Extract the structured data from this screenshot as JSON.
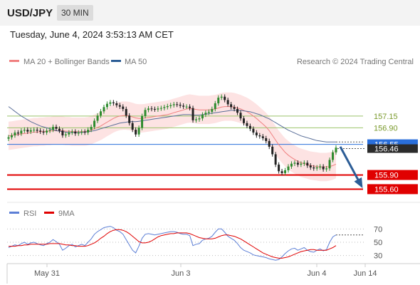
{
  "header": {
    "pair": "USD/JPY",
    "timeframe": "30 MIN",
    "datetime": "Tuesday, June 4, 2024 3:53:13 AM CET"
  },
  "legend": {
    "main": [
      {
        "label": "MA 20 + Bollinger Bands",
        "color": "#f08080"
      },
      {
        "label": "MA 50",
        "color": "#2c5d96"
      }
    ],
    "credit": "Research © 2024 Trading Central",
    "rsi": [
      {
        "label": "RSI",
        "color": "#5c7fd6"
      },
      {
        "label": "9MA",
        "color": "#e00000"
      }
    ]
  },
  "chart_data": {
    "type": "line",
    "price_axis": {
      "ylim": [
        155.35,
        158.1
      ],
      "levels": [
        {
          "label": "157.15",
          "value": 157.15,
          "kind": "resistance",
          "color": "#9bc46a"
        },
        {
          "label": "156.90",
          "value": 156.9,
          "kind": "resistance",
          "color": "#9bc46a"
        },
        {
          "label": "156.55",
          "value": 156.55,
          "kind": "pivot",
          "color": "#2a6fdb"
        },
        {
          "label": "155.90",
          "value": 155.9,
          "kind": "support",
          "color": "#e00000"
        },
        {
          "label": "155.60",
          "value": 155.6,
          "kind": "support",
          "color": "#e00000"
        }
      ],
      "current_price": {
        "label": "156.46",
        "value": 156.46
      }
    },
    "rsi_axis": {
      "ylim": [
        20,
        80
      ],
      "ticks": [
        {
          "label": "70",
          "value": 70
        },
        {
          "label": "50",
          "value": 50
        },
        {
          "label": "30",
          "value": 30
        }
      ]
    },
    "x_axis": {
      "ticks": [
        "May 31",
        "Jun 3",
        "Jun 4",
        "Jun 14"
      ]
    },
    "forecast": {
      "from": 156.5,
      "to": 155.6,
      "color": "#2c5d96"
    },
    "price": {
      "close": [
        156.7,
        156.74,
        156.8,
        156.78,
        156.84,
        156.86,
        156.82,
        156.85,
        156.86,
        156.84,
        156.82,
        156.8,
        156.84,
        156.86,
        156.92,
        156.88,
        156.84,
        156.74,
        156.76,
        156.8,
        156.82,
        156.78,
        156.8,
        156.82,
        156.8,
        156.86,
        156.92,
        157.05,
        157.16,
        157.25,
        157.34,
        157.41,
        157.44,
        157.42,
        157.38,
        157.35,
        157.3,
        157.16,
        157.0,
        156.86,
        156.76,
        156.9,
        157.15,
        157.28,
        157.31,
        157.3,
        157.29,
        157.31,
        157.32,
        157.34,
        157.36,
        157.38,
        157.4,
        157.39,
        157.37,
        157.35,
        157.35,
        157.32,
        157.06,
        157.08,
        157.1,
        157.18,
        157.22,
        157.24,
        157.3,
        157.42,
        157.54,
        157.56,
        157.49,
        157.4,
        157.34,
        157.3,
        157.22,
        157.1,
        157.0,
        156.94,
        156.88,
        156.8,
        156.74,
        156.72,
        156.68,
        156.62,
        156.5,
        156.34,
        156.12,
        155.98,
        155.94,
        156.0,
        156.08,
        156.14,
        156.16,
        156.12,
        156.14,
        156.16,
        156.1,
        156.06,
        156.04,
        156.06,
        156.08,
        156.02,
        156.04,
        156.22,
        156.38,
        156.48
      ],
      "ma20": [
        156.73,
        156.74,
        156.75,
        156.76,
        156.77,
        156.78,
        156.79,
        156.8,
        156.81,
        156.81,
        156.82,
        156.82,
        156.83,
        156.83,
        156.84,
        156.84,
        156.84,
        156.84,
        156.83,
        156.83,
        156.82,
        156.82,
        156.82,
        156.82,
        156.82,
        156.83,
        156.85,
        156.88,
        156.91,
        156.94,
        156.98,
        157.02,
        157.06,
        157.1,
        157.13,
        157.15,
        157.16,
        157.16,
        157.15,
        157.13,
        157.11,
        157.1,
        157.1,
        157.11,
        157.12,
        157.13,
        157.14,
        157.15,
        157.16,
        157.17,
        157.18,
        157.2,
        157.22,
        157.24,
        157.26,
        157.28,
        157.3,
        157.31,
        157.3,
        157.29,
        157.28,
        157.28,
        157.28,
        157.28,
        157.29,
        157.3,
        157.32,
        157.34,
        157.35,
        157.35,
        157.35,
        157.34,
        157.32,
        157.3,
        157.27,
        157.24,
        157.2,
        157.15,
        157.1,
        157.04,
        156.98,
        156.92,
        156.84,
        156.74,
        156.64,
        156.54,
        156.46,
        156.38,
        156.32,
        156.27,
        156.23,
        156.19,
        156.16,
        156.14,
        156.12,
        156.1,
        156.09,
        156.08,
        156.07,
        156.07,
        156.07,
        156.08,
        156.1,
        156.13
      ],
      "ma50": [
        157.35,
        157.3,
        157.25,
        157.2,
        157.15,
        157.11,
        157.07,
        157.03,
        157.0,
        156.97,
        156.94,
        156.92,
        156.9,
        156.88,
        156.86,
        156.84,
        156.83,
        156.82,
        156.81,
        156.8,
        156.8,
        156.8,
        156.8,
        156.8,
        156.81,
        156.82,
        156.83,
        156.84,
        156.86,
        156.88,
        156.9,
        156.92,
        156.94,
        156.96,
        156.98,
        157.0,
        157.01,
        157.02,
        157.03,
        157.03,
        157.03,
        157.04,
        157.05,
        157.06,
        157.07,
        157.08,
        157.09,
        157.1,
        157.11,
        157.12,
        157.13,
        157.14,
        157.15,
        157.16,
        157.17,
        157.18,
        157.18,
        157.18,
        157.17,
        157.17,
        157.17,
        157.18,
        157.19,
        157.2,
        157.21,
        157.22,
        157.23,
        157.24,
        157.25,
        157.26,
        157.27,
        157.27,
        157.27,
        157.27,
        157.26,
        157.25,
        157.24,
        157.22,
        157.2,
        157.18,
        157.15,
        157.12,
        157.09,
        157.05,
        157.01,
        156.97,
        156.93,
        156.89,
        156.85,
        156.82,
        156.79,
        156.76,
        156.73,
        156.71,
        156.69,
        156.67,
        156.65,
        156.63,
        156.62,
        156.61,
        156.6,
        156.6,
        156.6,
        156.6
      ]
    },
    "rsi": {
      "rsi": [
        42,
        44,
        46,
        45,
        48,
        50,
        47,
        49,
        50,
        48,
        46,
        45,
        48,
        50,
        54,
        51,
        47,
        38,
        41,
        45,
        47,
        43,
        45,
        47,
        45,
        50,
        55,
        62,
        66,
        69,
        72,
        73,
        74,
        72,
        68,
        66,
        62,
        54,
        46,
        38,
        34,
        44,
        56,
        62,
        63,
        62,
        61,
        62,
        63,
        64,
        65,
        66,
        66,
        65,
        63,
        62,
        62,
        60,
        45,
        47,
        48,
        53,
        55,
        56,
        59,
        65,
        70,
        70,
        65,
        59,
        56,
        53,
        48,
        42,
        38,
        36,
        34,
        31,
        30,
        29,
        28,
        27,
        25,
        24,
        23,
        24,
        28,
        33,
        37,
        40,
        41,
        38,
        40,
        42,
        38,
        36,
        35,
        38,
        40,
        37,
        39,
        50,
        58,
        61
      ],
      "ma9": [
        44,
        44,
        44,
        45,
        45,
        46,
        46,
        47,
        47,
        47,
        47,
        47,
        47,
        48,
        48,
        48,
        48,
        47,
        46,
        46,
        45,
        45,
        44,
        44,
        44,
        45,
        47,
        49,
        52,
        56,
        59,
        63,
        66,
        68,
        69,
        69,
        68,
        66,
        63,
        59,
        55,
        51,
        49,
        49,
        50,
        52,
        55,
        58,
        60,
        61,
        62,
        63,
        63,
        64,
        64,
        64,
        64,
        63,
        61,
        59,
        57,
        56,
        55,
        55,
        55,
        56,
        58,
        60,
        61,
        61,
        60,
        59,
        57,
        55,
        52,
        49,
        46,
        43,
        40,
        37,
        34,
        32,
        30,
        28,
        27,
        26,
        26,
        27,
        28,
        30,
        32,
        34,
        36,
        37,
        38,
        39,
        39,
        38,
        38,
        38,
        38,
        40,
        42,
        45
      ]
    }
  }
}
